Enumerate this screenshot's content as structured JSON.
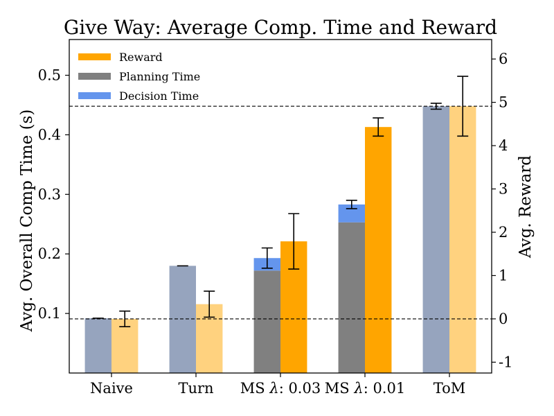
{
  "chart_data": {
    "type": "bar",
    "title": "Give Way: Average Comp. Time and Reward",
    "ylabel_left": "Avg. Overall Comp Time (s)",
    "ylabel_right": "Avg. Reward",
    "ylim_left": [
      0.0,
      0.56
    ],
    "ylim_right": [
      -1.25,
      6.45
    ],
    "yticks_left": [
      0.1,
      0.2,
      0.3,
      0.4,
      0.5
    ],
    "yticks_left_labels": [
      "0.1",
      "0.2",
      "0.3",
      "0.4",
      "0.5"
    ],
    "yticks_right": [
      -1,
      0,
      1,
      2,
      3,
      4,
      5,
      6
    ],
    "yticks_right_labels": [
      "-1",
      "0",
      "1",
      "2",
      "3",
      "4",
      "5",
      "6"
    ],
    "categories": [
      "Naive",
      "Turn",
      "MS λ: 0.03",
      "MS λ: 0.01",
      "ToM"
    ],
    "category_labels": [
      {
        "pre": "Naive",
        "sym": "",
        "post": ""
      },
      {
        "pre": "Turn",
        "sym": "",
        "post": ""
      },
      {
        "pre": "MS ",
        "sym": "λ",
        "post": ": 0.03"
      },
      {
        "pre": "MS ",
        "sym": "λ",
        "post": ": 0.01"
      },
      {
        "pre": "ToM",
        "sym": "",
        "post": ""
      }
    ],
    "legend": [
      "Reward",
      "Planning Time",
      "Decision Time"
    ],
    "colors": {
      "reward": "#FFA500",
      "reward_faded": "#FFD27F",
      "planning": "#808080",
      "decision": "#6495ED",
      "time_faded": "#96A4BE"
    },
    "series": [
      {
        "name": "Planning Time",
        "axis": "left",
        "values": [
          null,
          null,
          0.172,
          0.253,
          null
        ]
      },
      {
        "name": "Decision Time",
        "axis": "left",
        "values": [
          null,
          null,
          0.021,
          0.03,
          null
        ]
      },
      {
        "name": "Total Comp Time",
        "axis": "left",
        "values": [
          0.092,
          0.18,
          0.193,
          0.283,
          0.448
        ],
        "error": [
          0.0,
          0.0,
          0.017,
          0.007,
          0.005
        ]
      },
      {
        "name": "Reward",
        "axis": "right",
        "values": [
          0.0,
          0.34,
          1.79,
          4.43,
          4.91
        ],
        "error": [
          0.18,
          0.3,
          0.64,
          0.21,
          0.69
        ]
      }
    ],
    "highlighted": [
      false,
      false,
      true,
      true,
      false
    ],
    "reference_lines_right": [
      0,
      4.91
    ]
  }
}
